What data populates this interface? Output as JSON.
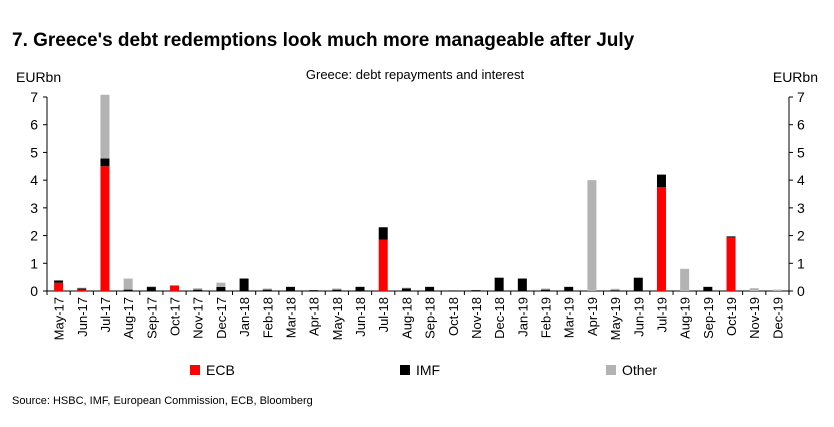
{
  "title": "7. Greece's debt redemptions look much more manageable after July",
  "source": "Source: HSBC, IMF, European Commission, ECB, Bloomberg",
  "colors": {
    "ECB": "#ff0000",
    "IMF": "#000000",
    "Other": "#b3b3b3"
  },
  "chart_data": {
    "type": "bar",
    "stacked": true,
    "title": "Greece: debt repayments and interest",
    "ylabel_left": "EURbn",
    "ylabel_right": "EURbn",
    "ylim": [
      0,
      7
    ],
    "yticks": [
      0,
      1,
      2,
      3,
      4,
      5,
      6,
      7
    ],
    "ytick_labels": [
      "0",
      "1",
      "2",
      "3",
      "4",
      "5",
      "6",
      "7"
    ],
    "categories": [
      "May-17",
      "Jun-17",
      "Jul-17",
      "Aug-17",
      "Sep-17",
      "Oct-17",
      "Nov-17",
      "Dec-17",
      "Jan-18",
      "Feb-18",
      "Mar-18",
      "Apr-18",
      "May-18",
      "Jun-18",
      "Jul-18",
      "Aug-18",
      "Sep-18",
      "Oct-18",
      "Nov-18",
      "Dec-18",
      "Jan-19",
      "Feb-19",
      "Mar-19",
      "Apr-19",
      "May-19",
      "Jun-19",
      "Jul-19",
      "Aug-19",
      "Sep-19",
      "Oct-19",
      "Nov-19",
      "Dec-19"
    ],
    "series": [
      {
        "name": "ECB",
        "values": [
          0.3,
          0.05,
          4.5,
          0,
          0,
          0.2,
          0,
          0,
          0,
          0,
          0,
          0,
          0,
          0,
          1.85,
          0,
          0,
          0,
          0,
          0,
          0,
          0,
          0,
          0,
          0,
          0,
          3.75,
          0,
          0,
          1.95,
          0,
          0
        ]
      },
      {
        "name": "IMF",
        "values": [
          0.08,
          0.04,
          0.28,
          0.05,
          0.15,
          0,
          0.05,
          0.15,
          0.45,
          0.05,
          0.15,
          0.03,
          0.05,
          0.15,
          0.45,
          0.1,
          0.15,
          0.02,
          0.03,
          0.48,
          0.45,
          0.05,
          0.15,
          0,
          0.03,
          0.48,
          0.45,
          0,
          0.15,
          0.02,
          0,
          0
        ]
      },
      {
        "name": "Other",
        "values": [
          0,
          0.03,
          2.3,
          0.4,
          0.02,
          0,
          0.05,
          0.15,
          0,
          0.04,
          0,
          0,
          0.04,
          0,
          0,
          0.02,
          0,
          0,
          0,
          0,
          0,
          0.04,
          0,
          4.0,
          0.05,
          0,
          0,
          0.8,
          0,
          0,
          0.1,
          0.05
        ]
      }
    ],
    "legend": [
      "ECB",
      "IMF",
      "Other"
    ],
    "legend_position": "bottom"
  }
}
